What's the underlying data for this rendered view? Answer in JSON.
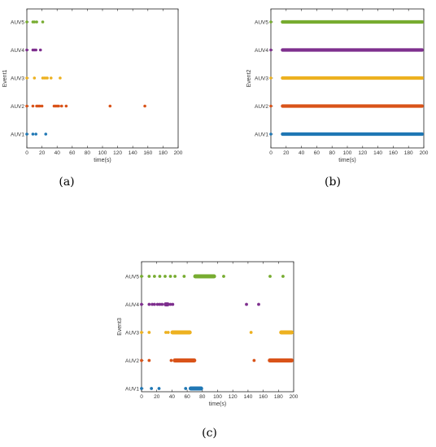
{
  "chart_data": [
    {
      "type": "scatter",
      "caption": "(a)",
      "xlabel": "time(s)",
      "ylabel": "Event1",
      "xlim": [
        0,
        200
      ],
      "xticks": [
        0,
        20,
        40,
        60,
        80,
        100,
        120,
        140,
        160,
        180,
        200
      ],
      "categories": [
        "AUV1",
        "AUV2",
        "AUV3",
        "AUV4",
        "AUV5"
      ],
      "series": [
        {
          "category": "AUV1",
          "color": "#1f77b4",
          "points": [
            0,
            8,
            12,
            25
          ],
          "segments": []
        },
        {
          "category": "AUV2",
          "color": "#d95319",
          "points": [
            0,
            8,
            13,
            15,
            17,
            20,
            36,
            38,
            40,
            42,
            46,
            52,
            110,
            156
          ],
          "segments": []
        },
        {
          "category": "AUV3",
          "color": "#edb120",
          "points": [
            0,
            10,
            21,
            23,
            25,
            27,
            32,
            44
          ],
          "segments": []
        },
        {
          "category": "AUV4",
          "color": "#7e2f8e",
          "points": [
            0,
            8,
            10,
            12,
            18
          ],
          "segments": []
        },
        {
          "category": "AUV5",
          "color": "#77ac30",
          "points": [
            0,
            8,
            10,
            13,
            21
          ],
          "segments": []
        }
      ]
    },
    {
      "type": "scatter",
      "caption": "(b)",
      "xlabel": "time(s)",
      "ylabel": "Event2",
      "xlim": [
        0,
        200
      ],
      "xticks": [
        0,
        20,
        40,
        60,
        80,
        100,
        120,
        140,
        160,
        180,
        200
      ],
      "categories": [
        "AUV1",
        "AUV2",
        "AUV3",
        "AUV4",
        "AUV5"
      ],
      "series": [
        {
          "category": "AUV1",
          "color": "#1f77b4",
          "points": [
            0
          ],
          "segments": [
            [
              13,
              200
            ]
          ]
        },
        {
          "category": "AUV2",
          "color": "#d95319",
          "points": [
            0
          ],
          "segments": [
            [
              13,
              200
            ]
          ]
        },
        {
          "category": "AUV3",
          "color": "#edb120",
          "points": [
            0
          ],
          "segments": [
            [
              13,
              200
            ]
          ]
        },
        {
          "category": "AUV4",
          "color": "#7e2f8e",
          "points": [
            0
          ],
          "segments": [
            [
              13,
              200
            ]
          ]
        },
        {
          "category": "AUV5",
          "color": "#77ac30",
          "points": [
            0
          ],
          "segments": [
            [
              13,
              200
            ]
          ]
        }
      ]
    },
    {
      "type": "scatter",
      "caption": "(c)",
      "xlabel": "time(s)",
      "ylabel": "Event3",
      "xlim": [
        0,
        200
      ],
      "xticks": [
        0,
        20,
        40,
        60,
        80,
        100,
        120,
        140,
        160,
        180,
        200
      ],
      "categories": [
        "AUV1",
        "AUV2",
        "AUV3",
        "AUV4",
        "AUV5"
      ],
      "series": [
        {
          "category": "AUV1",
          "color": "#1f77b4",
          "points": [
            0,
            13,
            23,
            58
          ],
          "segments": [
            [
              62,
              81
            ]
          ]
        },
        {
          "category": "AUV2",
          "color": "#d95319",
          "points": [
            0,
            10,
            39,
            148
          ],
          "segments": [
            [
              41,
              72
            ],
            [
              166,
              200
            ]
          ]
        },
        {
          "category": "AUV3",
          "color": "#edb120",
          "points": [
            0,
            10,
            32,
            35,
            144
          ],
          "segments": [
            [
              38,
              66
            ],
            [
              181,
              200
            ]
          ]
        },
        {
          "category": "AUV4",
          "color": "#7e2f8e",
          "points": [
            0,
            10,
            14,
            17,
            21,
            24,
            27,
            38,
            41,
            138,
            154
          ],
          "segments": [
            [
              29,
              37
            ]
          ]
        },
        {
          "category": "AUV5",
          "color": "#77ac30",
          "points": [
            0,
            10,
            17,
            24,
            31,
            38,
            44,
            56,
            108,
            169,
            186
          ],
          "segments": [
            [
              68,
              98
            ]
          ]
        }
      ]
    }
  ]
}
